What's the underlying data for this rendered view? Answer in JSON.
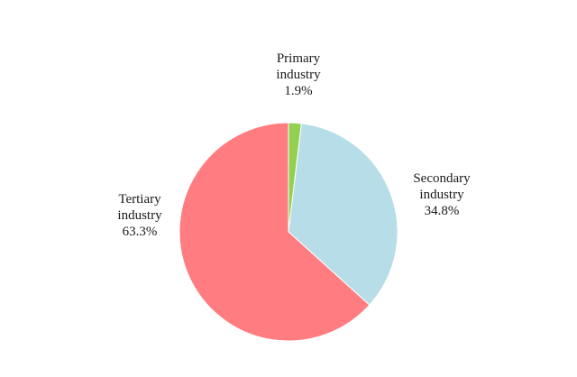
{
  "chart_data": {
    "type": "pie",
    "title": "",
    "slices": [
      {
        "name": "Primary industry",
        "name_lines": [
          "Primary",
          "industry"
        ],
        "value": 1.9,
        "value_label": "1.9%",
        "color": "#92D050"
      },
      {
        "name": "Secondary industry",
        "name_lines": [
          "Secondary",
          "industry"
        ],
        "value": 34.8,
        "value_label": "34.8%",
        "color": "#B7DEE8"
      },
      {
        "name": "Tertiary industry",
        "name_lines": [
          "Tertiary",
          "industry"
        ],
        "value": 63.3,
        "value_label": "63.3%",
        "color": "#FF7C80"
      }
    ],
    "start_angle": "12 o'clock",
    "direction": "clockwise",
    "legend": "none"
  }
}
